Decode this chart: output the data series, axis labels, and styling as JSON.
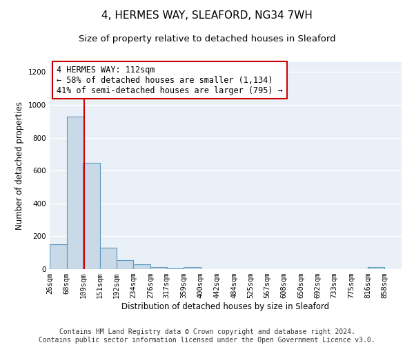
{
  "title": "4, HERMES WAY, SLEAFORD, NG34 7WH",
  "subtitle": "Size of property relative to detached houses in Sleaford",
  "xlabel": "Distribution of detached houses by size in Sleaford",
  "ylabel": "Number of detached properties",
  "footer_line1": "Contains HM Land Registry data © Crown copyright and database right 2024.",
  "footer_line2": "Contains public sector information licensed under the Open Government Licence v3.0.",
  "bin_edges": [
    26,
    68,
    109,
    151,
    192,
    234,
    276,
    317,
    359,
    400,
    442,
    484,
    525,
    567,
    608,
    650,
    692,
    733,
    775,
    816,
    858
  ],
  "bar_heights": [
    150,
    930,
    645,
    130,
    55,
    28,
    12,
    5,
    12,
    0,
    0,
    0,
    0,
    0,
    0,
    0,
    0,
    0,
    0,
    12
  ],
  "bar_color": "#c9d9e8",
  "bar_edge_color": "#5a9abf",
  "red_line_x": 112,
  "red_line_color": "#cc0000",
  "annotation_text": "4 HERMES WAY: 112sqm\n← 58% of detached houses are smaller (1,134)\n41% of semi-detached houses are larger (795) →",
  "annotation_box_color": "#cc0000",
  "ylim": [
    0,
    1260
  ],
  "yticks": [
    0,
    200,
    400,
    600,
    800,
    1000,
    1200
  ],
  "background_color": "#eaf0f8",
  "grid_color": "#ffffff",
  "title_fontsize": 11,
  "subtitle_fontsize": 9.5,
  "axis_fontsize": 8.5,
  "tick_fontsize": 7.5,
  "annot_fontsize": 8.5,
  "footer_fontsize": 7
}
